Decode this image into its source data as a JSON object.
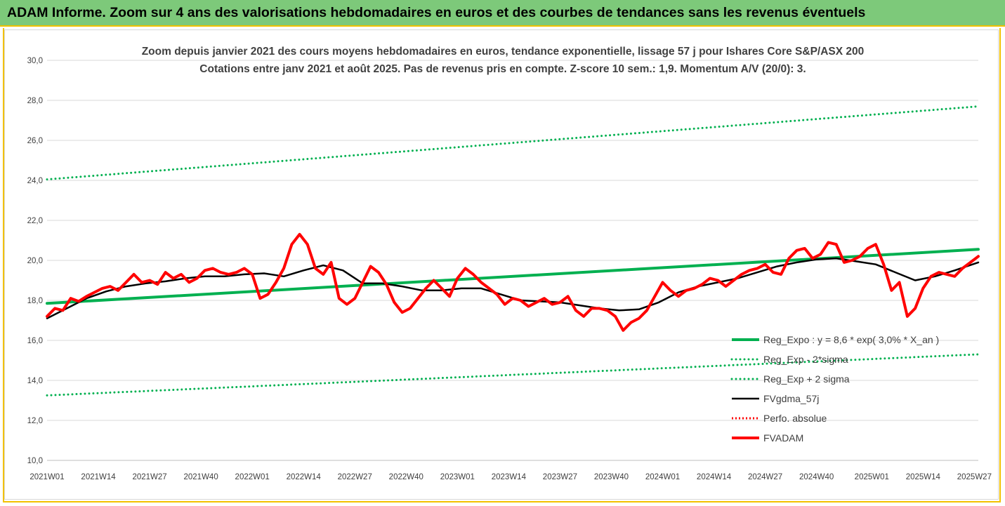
{
  "banner": {
    "title": "ADAM Informe. Zoom sur 4 ans des valorisations hebdomadaires en euros et des courbes de tendances sans les revenus éventuels"
  },
  "chart_data": {
    "type": "line",
    "title_line1": "Zoom depuis janvier 2021 des cours moyens hebdomadaires en euros, tendance exponentielle, lissage 57 j pour Ishares Core S&P/ASX 200",
    "title_line2": "Cotations entre janv 2021 et août 2025.  Pas de revenus pris en compte. Z-score 10 sem.: 1,9. Momentum A/V (20/0): 3.",
    "ylim": [
      10,
      30
    ],
    "y_ticks": [
      "10,0",
      "12,0",
      "14,0",
      "16,0",
      "18,0",
      "20,0",
      "22,0",
      "24,0",
      "26,0",
      "28,0",
      "30,0"
    ],
    "x_range_weeks": [
      0,
      236
    ],
    "x_ticks": [
      {
        "label": "2021W01",
        "w": 0
      },
      {
        "label": "2021W14",
        "w": 13
      },
      {
        "label": "2021W27",
        "w": 26
      },
      {
        "label": "2021W40",
        "w": 39
      },
      {
        "label": "2022W01",
        "w": 52
      },
      {
        "label": "2022W14",
        "w": 65
      },
      {
        "label": "2022W27",
        "w": 78
      },
      {
        "label": "2022W40",
        "w": 91
      },
      {
        "label": "2023W01",
        "w": 104
      },
      {
        "label": "2023W14",
        "w": 117
      },
      {
        "label": "2023W27",
        "w": 130
      },
      {
        "label": "2023W40",
        "w": 143
      },
      {
        "label": "2024W01",
        "w": 156
      },
      {
        "label": "2024W14",
        "w": 169
      },
      {
        "label": "2024W27",
        "w": 182
      },
      {
        "label": "2024W40",
        "w": 195
      },
      {
        "label": "2025W01",
        "w": 209
      },
      {
        "label": "2025W14",
        "w": 222
      },
      {
        "label": "2025W27",
        "w": 235
      }
    ],
    "grid": "horizontal",
    "legend_position": "bottom-right",
    "series": [
      {
        "name": "Reg_Expo : y = 8,6 * exp( 3,0% *  X_an )",
        "color": "#00b050",
        "style": "solid",
        "width": 4,
        "x": [
          0,
          236
        ],
        "values": [
          17.85,
          20.55
        ]
      },
      {
        "name": "Reg_Exp - 2*sigma",
        "color": "#00b050",
        "style": "dotted",
        "width": 3,
        "x": [
          0,
          236
        ],
        "values": [
          13.25,
          15.3
        ]
      },
      {
        "name": "Reg_Exp + 2 sigma",
        "color": "#00b050",
        "style": "dotted",
        "width": 3,
        "x": [
          0,
          236
        ],
        "values": [
          24.05,
          27.7
        ]
      },
      {
        "name": "FVgdma_57j",
        "color": "#000000",
        "style": "solid",
        "width": 2.5,
        "x": [
          0,
          5,
          10,
          15,
          20,
          25,
          30,
          35,
          40,
          45,
          50,
          55,
          60,
          65,
          70,
          75,
          80,
          85,
          90,
          95,
          100,
          105,
          110,
          115,
          120,
          125,
          130,
          135,
          140,
          145,
          150,
          155,
          160,
          165,
          170,
          175,
          180,
          185,
          190,
          195,
          200,
          205,
          210,
          215,
          220,
          225,
          230,
          236
        ],
        "values": [
          17.1,
          17.6,
          18.1,
          18.45,
          18.7,
          18.85,
          18.95,
          19.1,
          19.2,
          19.2,
          19.3,
          19.35,
          19.2,
          19.5,
          19.75,
          19.5,
          18.85,
          18.85,
          18.7,
          18.5,
          18.5,
          18.6,
          18.6,
          18.3,
          18.0,
          17.95,
          17.9,
          17.75,
          17.6,
          17.5,
          17.55,
          17.9,
          18.4,
          18.7,
          18.9,
          19.1,
          19.4,
          19.7,
          19.9,
          20.05,
          20.1,
          19.95,
          19.8,
          19.4,
          19.0,
          19.2,
          19.5,
          19.9
        ]
      },
      {
        "name": "Perfo. absolue",
        "color": "#ff0000",
        "style": "dotted",
        "width": 3,
        "x": [],
        "values": []
      },
      {
        "name": "FVADAM",
        "color": "#ff0000",
        "style": "solid",
        "width": 4,
        "x": [
          0,
          2,
          4,
          6,
          8,
          10,
          12,
          14,
          16,
          18,
          20,
          22,
          24,
          26,
          28,
          30,
          32,
          34,
          36,
          38,
          40,
          42,
          44,
          46,
          48,
          50,
          52,
          54,
          56,
          58,
          60,
          62,
          64,
          66,
          68,
          70,
          72,
          74,
          76,
          78,
          80,
          82,
          84,
          86,
          88,
          90,
          92,
          94,
          96,
          98,
          100,
          102,
          104,
          106,
          108,
          110,
          112,
          114,
          116,
          118,
          120,
          122,
          124,
          126,
          128,
          130,
          132,
          134,
          136,
          138,
          140,
          142,
          144,
          146,
          148,
          150,
          152,
          154,
          156,
          158,
          160,
          162,
          164,
          166,
          168,
          170,
          172,
          174,
          176,
          178,
          180,
          182,
          184,
          186,
          188,
          190,
          192,
          194,
          196,
          198,
          200,
          202,
          204,
          206,
          208,
          210,
          212,
          214,
          216,
          218,
          220,
          222,
          224,
          226,
          228,
          230,
          232,
          234,
          236
        ],
        "values": [
          17.2,
          17.6,
          17.5,
          18.1,
          17.95,
          18.2,
          18.4,
          18.6,
          18.7,
          18.5,
          18.9,
          19.3,
          18.9,
          19.0,
          18.8,
          19.4,
          19.1,
          19.3,
          18.9,
          19.1,
          19.5,
          19.6,
          19.4,
          19.3,
          19.4,
          19.6,
          19.3,
          18.1,
          18.3,
          18.9,
          19.6,
          20.8,
          21.3,
          20.8,
          19.6,
          19.3,
          19.9,
          18.1,
          17.8,
          18.1,
          18.9,
          19.7,
          19.4,
          18.8,
          17.9,
          17.4,
          17.6,
          18.1,
          18.6,
          19.0,
          18.6,
          18.2,
          19.1,
          19.6,
          19.3,
          18.9,
          18.6,
          18.3,
          17.8,
          18.1,
          18.0,
          17.7,
          17.9,
          18.1,
          17.8,
          17.9,
          18.2,
          17.5,
          17.2,
          17.6,
          17.6,
          17.5,
          17.2,
          16.5,
          16.9,
          17.1,
          17.5,
          18.2,
          18.9,
          18.5,
          18.2,
          18.5,
          18.6,
          18.8,
          19.1,
          19.0,
          18.7,
          19.0,
          19.3,
          19.5,
          19.6,
          19.8,
          19.4,
          19.3,
          20.1,
          20.5,
          20.6,
          20.1,
          20.3,
          20.9,
          20.8,
          19.9,
          20.0,
          20.2,
          20.6,
          20.8,
          19.8,
          18.5,
          18.9,
          17.2,
          17.6,
          18.6,
          19.2,
          19.4,
          19.3,
          19.2,
          19.6,
          19.9,
          20.2
        ]
      }
    ]
  }
}
